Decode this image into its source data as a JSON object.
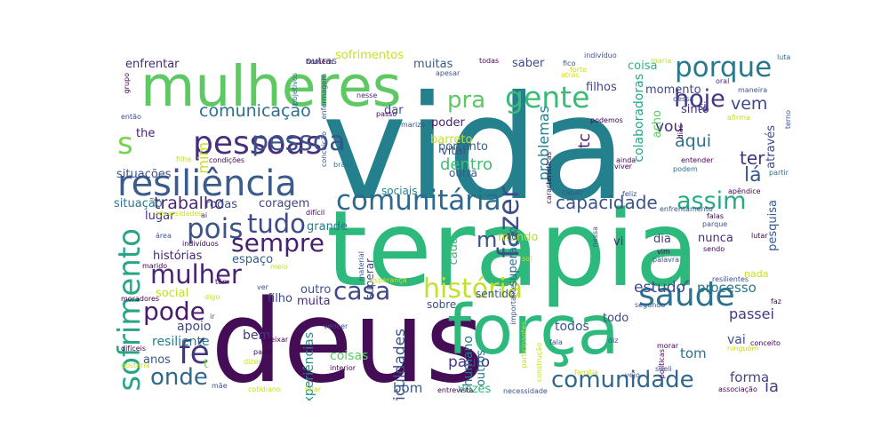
{
  "words": [
    {
      "text": "vida",
      "color": "#23808c"
    },
    {
      "text": "terapia",
      "color": "#2db87c"
    },
    {
      "text": "deus",
      "color": "#440d56"
    },
    {
      "text": "força",
      "color": "#2db87c"
    },
    {
      "text": "mulheres",
      "color": "#5ec962"
    },
    {
      "text": "resiliência",
      "color": "#3b5b8c"
    },
    {
      "text": "pessoas",
      "color": "#472f7d"
    },
    {
      "text": "comunitária",
      "color": "#30698e"
    },
    {
      "text": "sofrimento",
      "color": "#2aa486"
    },
    {
      "text": "história",
      "color": "#c5df2e"
    },
    {
      "text": "saúde",
      "color": "#2c728e"
    },
    {
      "text": "gente",
      "color": "#3bbb75"
    },
    {
      "text": "porque",
      "color": "#2a788e"
    },
    {
      "text": "tudo",
      "color": "#3e4989"
    },
    {
      "text": "pois",
      "color": "#39558c"
    },
    {
      "text": "fazer",
      "color": "#3d4e8a"
    },
    {
      "text": "comunidade",
      "color": "#31668e"
    },
    {
      "text": "pessoa",
      "color": "#3b528b"
    },
    {
      "text": "hoje",
      "color": "#453581"
    },
    {
      "text": "mulher",
      "color": "#482475"
    },
    {
      "text": "pode",
      "color": "#481b6d"
    },
    {
      "text": "onde",
      "color": "#31688e"
    },
    {
      "text": "casa",
      "color": "#3f4788"
    },
    {
      "text": "sempre",
      "color": "#481f70"
    },
    {
      "text": "assim",
      "color": "#25ab82"
    },
    {
      "text": "pra",
      "color": "#5ec962"
    },
    {
      "text": "fé",
      "color": "#453581"
    },
    {
      "text": "s",
      "color": "#7ad151"
    },
    {
      "text": "m",
      "color": "#3b528b"
    },
    {
      "text": "comunicação",
      "color": "#2d708e"
    },
    {
      "text": "capacidade",
      "color": "#3a538b"
    },
    {
      "text": "dentro",
      "color": "#3fbc73"
    },
    {
      "text": "trabalho",
      "color": "#482576"
    },
    {
      "text": "problemas",
      "color": "#277f8e"
    },
    {
      "text": "colaboradoras",
      "color": "#22a785"
    },
    {
      "text": "vem",
      "color": "#3e4989"
    },
    {
      "text": "aqui",
      "color": "#2e6f8e"
    },
    {
      "text": "lá",
      "color": "#38578c"
    },
    {
      "text": "ter",
      "color": "#46327e"
    },
    {
      "text": "estudo",
      "color": "#3e4c8a"
    },
    {
      "text": "processo",
      "color": "#2a778e"
    },
    {
      "text": "passei",
      "color": "#453882"
    },
    {
      "text": "mim",
      "color": "#c8e020"
    },
    {
      "text": "tc",
      "color": "#482071"
    },
    {
      "text": "vou",
      "color": "#46307e"
    },
    {
      "text": "tom",
      "color": "#2e6e8e"
    },
    {
      "text": "forma",
      "color": "#404688"
    },
    {
      "text": "ia",
      "color": "#433e85"
    },
    {
      "text": "vai",
      "color": "#3c508b"
    },
    {
      "text": "paulo",
      "color": "#453882"
    },
    {
      "text": "todos",
      "color": "#38578c"
    },
    {
      "text": "humano",
      "color": "#2b758e"
    },
    {
      "text": "dificuldades",
      "color": "#3b528b"
    },
    {
      "text": "experiências",
      "color": "#21918c"
    },
    {
      "text": "outros",
      "color": "#2c728e"
    },
    {
      "text": "bom",
      "color": "#365c8d"
    },
    {
      "text": "bem",
      "color": "#453781"
    },
    {
      "text": "coisas",
      "color": "#5ec962"
    },
    {
      "text": "vezes",
      "color": "#32b67a"
    },
    {
      "text": "apoio",
      "color": "#3e4a89"
    },
    {
      "text": "resiliente",
      "color": "#287d8e"
    },
    {
      "text": "anos",
      "color": "#3a548c"
    },
    {
      "text": "t",
      "color": "#7ad151"
    },
    {
      "text": "social",
      "color": "#c2df23"
    },
    {
      "text": "outro",
      "color": "#3b528b"
    },
    {
      "text": "muita",
      "color": "#472d7b"
    },
    {
      "text": "filho",
      "color": "#3f4889"
    },
    {
      "text": "espaço",
      "color": "#355f8d"
    },
    {
      "text": "histórias",
      "color": "#482878"
    },
    {
      "text": "lugar",
      "color": "#46337f"
    },
    {
      "text": "grande",
      "color": "#2a788e"
    },
    {
      "text": "coragem",
      "color": "#414487"
    },
    {
      "text": "rodas",
      "color": "#3d4d8a"
    },
    {
      "text": "situação",
      "color": "#2a788e"
    },
    {
      "text": "situações",
      "color": "#3b528b"
    },
    {
      "text": "enfrentar",
      "color": "#472a7a"
    },
    {
      "text": "outras",
      "color": "#3b528b"
    },
    {
      "text": "sofrimentos",
      "color": "#c8e020"
    },
    {
      "text": "muitas",
      "color": "#365c8d"
    },
    {
      "text": "saber",
      "color": "#3e4a89"
    },
    {
      "text": "coisa",
      "color": "#2fb47c"
    },
    {
      "text": "filhos",
      "color": "#3f4788"
    },
    {
      "text": "portanto",
      "color": "#32648e"
    },
    {
      "text": "poder",
      "color": "#482173"
    },
    {
      "text": "dar",
      "color": "#3e4989"
    },
    {
      "text": "barreto",
      "color": "#c5df2e"
    },
    {
      "text": "vital",
      "color": "#3b528b"
    },
    {
      "text": "outra",
      "color": "#355e8d"
    },
    {
      "text": "sociais",
      "color": "#23898e"
    },
    {
      "text": "mundo",
      "color": "#b5de2b"
    },
    {
      "text": "cada",
      "color": "#3dbc74"
    },
    {
      "text": "sentido",
      "color": "#3a548c"
    },
    {
      "text": "sobre",
      "color": "#3b518b"
    },
    {
      "text": "superação",
      "color": "#31688e"
    },
    {
      "text": "superar",
      "color": "#3e4a89"
    },
    {
      "text": "vi",
      "color": "#482475"
    },
    {
      "text": "dia",
      "color": "#424086"
    },
    {
      "text": "nunca",
      "color": "#472d7b"
    },
    {
      "text": "pesquisa",
      "color": "#38598c"
    },
    {
      "text": "momento",
      "color": "#3e4a89"
    },
    {
      "text": "sinto",
      "color": "#463480"
    },
    {
      "text": "acho",
      "color": "#5ec962"
    },
    {
      "text": "si",
      "color": "#46337f"
    },
    {
      "text": "the",
      "color": "#482071"
    },
    {
      "text": "através",
      "color": "#3f4788"
    },
    {
      "text": "nada",
      "color": "#c8e020"
    },
    {
      "text": "todo",
      "color": "#3e4989"
    },
    {
      "text": "homem",
      "color": "#440154"
    },
    {
      "text": "todas",
      "color": "#440154"
    },
    {
      "text": "indivíduo",
      "color": "#3b528b"
    },
    {
      "text": "fico",
      "color": "#3b528b"
    },
    {
      "text": "forte",
      "color": "#c8e020"
    },
    {
      "text": "luta",
      "color": "#2c728e"
    },
    {
      "text": "maria",
      "color": "#c8e020"
    },
    {
      "text": "oral",
      "color": "#482878"
    },
    {
      "text": "maneira",
      "color": "#3b528b"
    },
    {
      "text": "apesar",
      "color": "#3b528b"
    },
    {
      "text": "características",
      "color": "#440154"
    },
    {
      "text": "atrás",
      "color": "#e0e000"
    },
    {
      "text": "objetivos",
      "color": "#2c728e"
    },
    {
      "text": "enfermagem",
      "color": "#3b528b"
    },
    {
      "text": "nesse",
      "color": "#482878"
    },
    {
      "text": "passo",
      "color": "#440154"
    },
    {
      "text": "grupo",
      "color": "#440154"
    },
    {
      "text": "então",
      "color": "#3b528b"
    },
    {
      "text": "filha",
      "color": "#c8e020"
    },
    {
      "text": "condições",
      "color": "#440154"
    },
    {
      "text": "mariza",
      "color": "#3b528b"
    },
    {
      "text": "conceição",
      "color": "#3b528b"
    },
    {
      "text": "brasil",
      "color": "#2c728e"
    },
    {
      "text": "dessa",
      "color": "#3b528b"
    },
    {
      "text": "dias",
      "color": "#440154"
    },
    {
      "text": "podemos",
      "color": "#440154"
    },
    {
      "text": "afirma",
      "color": "#c8e020"
    },
    {
      "text": "terno",
      "color": "#3b528b"
    },
    {
      "text": "ainda",
      "color": "#440154"
    },
    {
      "text": "viver",
      "color": "#440154"
    },
    {
      "text": "entender",
      "color": "#440154"
    },
    {
      "text": "podem",
      "color": "#2c728e"
    },
    {
      "text": "partir",
      "color": "#2c728e"
    },
    {
      "text": "capaz",
      "color": "#3b528b"
    },
    {
      "text": "feliz",
      "color": "#3b528b"
    },
    {
      "text": "apêndice",
      "color": "#440154"
    },
    {
      "text": "adversidades",
      "color": "#c8e020"
    },
    {
      "text": "ai",
      "color": "#482878"
    },
    {
      "text": "difícil",
      "color": "#440154"
    },
    {
      "text": "enfrentamento",
      "color": "#3b528b"
    },
    {
      "text": "falas",
      "color": "#440154"
    },
    {
      "text": "parque",
      "color": "#3b528b"
    },
    {
      "text": "área",
      "color": "#3b528b"
    },
    {
      "text": "indivíduos",
      "color": "#440154"
    },
    {
      "text": "lutar",
      "color": "#440154"
    },
    {
      "text": "sendo",
      "color": "#440154"
    },
    {
      "text": "material",
      "color": "#3b528b"
    },
    {
      "text": "nessa",
      "color": "#3b528b"
    },
    {
      "text": "vim",
      "color": "#440154"
    },
    {
      "text": "palavra",
      "color": "#3b528b"
    },
    {
      "text": "sol",
      "color": "#c8e020"
    },
    {
      "text": "marido",
      "color": "#440154"
    },
    {
      "text": "meio",
      "color": "#c8e020"
    },
    {
      "text": "esperança",
      "color": "#c8e020"
    },
    {
      "text": "resilientes",
      "color": "#3b528b"
    },
    {
      "text": "têm",
      "color": "#440154"
    },
    {
      "text": "ver",
      "color": "#3b528b"
    },
    {
      "text": "digo",
      "color": "#c8e020"
    },
    {
      "text": "moradores",
      "color": "#440154"
    },
    {
      "text": "ir",
      "color": "#3b528b"
    },
    {
      "text": "importante",
      "color": "#3b528b"
    },
    {
      "text": "participantes",
      "color": "#c8e020"
    },
    {
      "text": "segundo",
      "color": "#3b528b"
    },
    {
      "text": "faz",
      "color": "#440154"
    },
    {
      "text": "conceito",
      "color": "#440154"
    },
    {
      "text": "vencer",
      "color": "#3b528b"
    },
    {
      "text": "parte",
      "color": "#440154"
    },
    {
      "text": "deixar",
      "color": "#440154"
    },
    {
      "text": "dizer",
      "color": "#c8e020"
    },
    {
      "text": "construção",
      "color": "#c8e020"
    },
    {
      "text": "fala",
      "color": "#3b528b"
    },
    {
      "text": "diz",
      "color": "#3b528b"
    },
    {
      "text": "morar",
      "color": "#440154"
    },
    {
      "text": "ninguém",
      "color": "#c8e020"
    },
    {
      "text": "políticas",
      "color": "#440154"
    },
    {
      "text": "vejo",
      "color": "#3b528b"
    },
    {
      "text": "sueli",
      "color": "#3b528b"
    },
    {
      "text": "família",
      "color": "#c8e020"
    },
    {
      "text": "difíceis",
      "color": "#440154"
    },
    {
      "text": "gostaria",
      "color": "#c8e020"
    },
    {
      "text": "interior",
      "color": "#440154"
    },
    {
      "text": "mãe",
      "color": "#3b528b"
    },
    {
      "text": "cotidiano",
      "color": "#c8e020"
    },
    {
      "text": "falar",
      "color": "#c8e020"
    },
    {
      "text": "entrevista",
      "color": "#440154"
    },
    {
      "text": "necessidade",
      "color": "#3b528b"
    },
    {
      "text": "associação",
      "color": "#440154"
    }
  ]
}
